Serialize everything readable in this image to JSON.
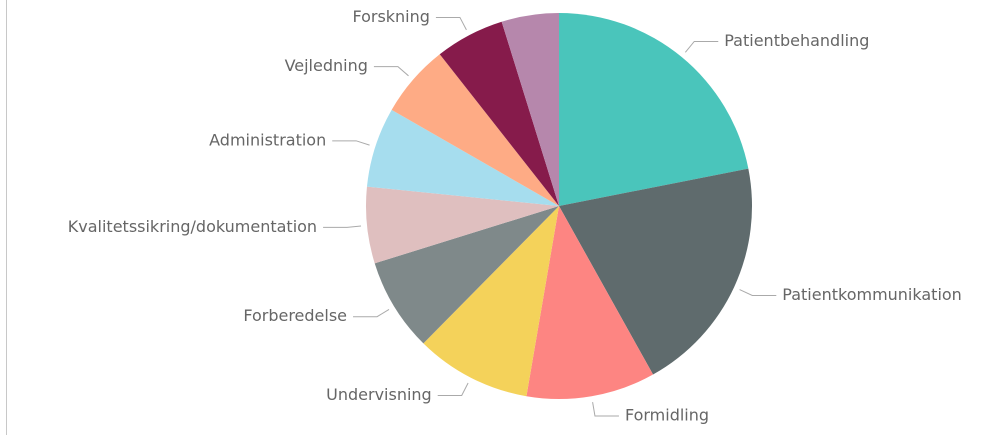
{
  "chart_data": {
    "type": "pie",
    "categories": [
      "Patientbehandling",
      "Patientkommunikation",
      "Formidling",
      "Undervisning",
      "Forberedelse",
      "Kvalitetssikring/dokumentation",
      "Administration",
      "Vejledning",
      "Forskning",
      null
    ],
    "values": [
      21.9,
      20.0,
      10.8,
      9.7,
      7.8,
      6.4,
      6.7,
      6.1,
      5.8,
      4.8
    ],
    "colors": [
      "#4AC5BB",
      "#5F6B6D",
      "#FD8582",
      "#F4D25A",
      "#7F898A",
      "#DFBFBF",
      "#A6DDEE",
      "#FEAB85",
      "#861B4B",
      "#B687AC"
    ]
  }
}
